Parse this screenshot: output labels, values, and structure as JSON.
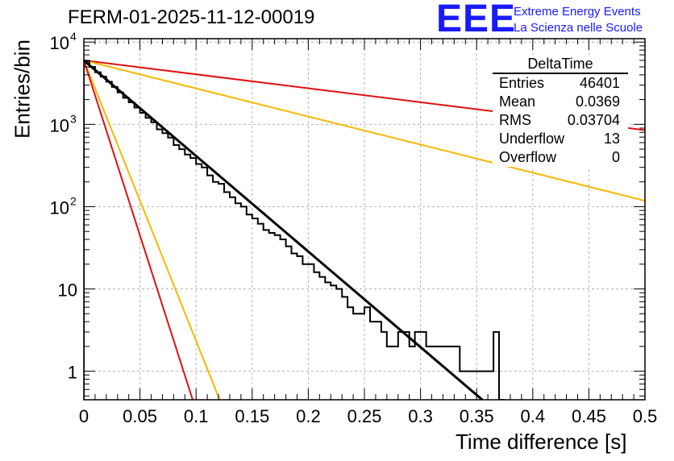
{
  "header": {
    "run_title": "FERM-01-2025-11-12-00019",
    "logo_letters": "EEE",
    "logo_line1": "Extreme Energy Events",
    "logo_line2": "La Scienza nelle Scuole"
  },
  "stats_box": {
    "title": "DeltaTime",
    "rows": [
      {
        "label": "Entries",
        "value": "46401"
      },
      {
        "label": "Mean",
        "value": "0.0369"
      },
      {
        "label": "RMS",
        "value": "0.03704"
      },
      {
        "label": "Underflow",
        "value": "13"
      },
      {
        "label": "Overflow",
        "value": "0"
      }
    ]
  },
  "colors": {
    "histogram": "#000000",
    "fit": "#000000",
    "red_curve": "#e01010",
    "orange_curve": "#f5b800",
    "grid": "#b0b0b0"
  },
  "chart_data": {
    "type": "line",
    "title": "FERM-01-2025-11-12-00019",
    "xlabel": "Time difference [s]",
    "ylabel": "Entries/bin",
    "xlim": [
      0,
      0.5
    ],
    "ylim": [
      0.45,
      11000
    ],
    "yscale": "log",
    "grid": true,
    "x_ticks": [
      "0",
      "0.05",
      "0.1",
      "0.15",
      "0.2",
      "0.25",
      "0.3",
      "0.35",
      "0.4",
      "0.45",
      "0.5"
    ],
    "y_ticks": [
      {
        "value": 1,
        "label": "1"
      },
      {
        "value": 10,
        "label": "10"
      },
      {
        "value": 100,
        "label": "10",
        "exp": "2"
      },
      {
        "value": 1000,
        "label": "10",
        "exp": "3"
      },
      {
        "value": 10000,
        "label": "10",
        "exp": "4"
      }
    ],
    "histogram": {
      "name": "DeltaTime",
      "bin_width": 0.005,
      "values": [
        5900,
        5000,
        4300,
        3800,
        3300,
        2850,
        2450,
        2100,
        1850,
        1600,
        1380,
        1200,
        1060,
        870,
        780,
        690,
        560,
        500,
        430,
        390,
        330,
        300,
        240,
        200,
        190,
        150,
        130,
        110,
        100,
        80,
        72,
        62,
        52,
        48,
        45,
        40,
        33,
        27,
        25,
        20,
        20,
        16,
        14,
        12,
        11,
        10,
        8,
        6,
        5,
        5,
        6,
        4,
        4,
        3,
        2,
        2,
        3,
        3,
        2,
        3,
        3,
        2,
        2,
        2,
        2,
        2,
        2,
        1,
        1,
        1,
        1,
        1,
        1,
        3,
        0.45
      ]
    },
    "series": [
      {
        "name": "fit",
        "color": "#000000",
        "x": [
          0,
          0.355
        ],
        "y": [
          6000,
          0.44
        ]
      },
      {
        "name": "red-slow",
        "color": "#e01010",
        "x": [
          0,
          0.5
        ],
        "y": [
          6000,
          850
        ]
      },
      {
        "name": "orange-slow",
        "color": "#f5b800",
        "x": [
          0,
          0.5
        ],
        "y": [
          6000,
          118
        ]
      },
      {
        "name": "orange-fast",
        "color": "#f5b800",
        "x": [
          0,
          0.121
        ],
        "y": [
          6000,
          0.44
        ]
      },
      {
        "name": "red-fast",
        "color": "#e01010",
        "x": [
          0,
          0.097
        ],
        "y": [
          6000,
          0.44
        ]
      }
    ]
  }
}
